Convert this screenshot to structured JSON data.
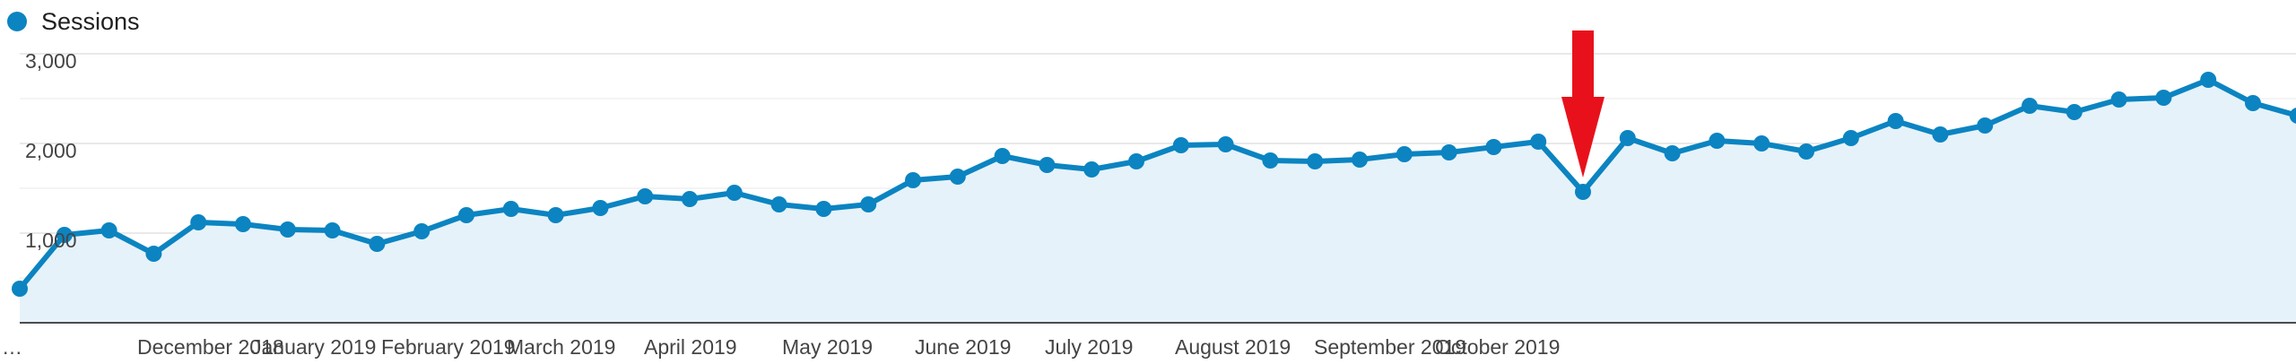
{
  "colors": {
    "line": "#0b84c1",
    "area": "#e6f2fa",
    "grid": "#e8e8e8",
    "axis": "#4d4d4d",
    "annotation_arrow": "#e8111b"
  },
  "chart_data": {
    "type": "area",
    "series": [
      {
        "name": "Sessions",
        "values": [
          380,
          980,
          1030,
          770,
          1120,
          1100,
          1040,
          1030,
          880,
          1020,
          1200,
          1270,
          1200,
          1280,
          1410,
          1380,
          1450,
          1320,
          1270,
          1320,
          1590,
          1630,
          1860,
          1760,
          1710,
          1800,
          1980,
          1990,
          1810,
          1800,
          1820,
          1880,
          1900,
          1960,
          2020,
          1460,
          2060,
          1890,
          2030,
          2000,
          1910,
          2060,
          2250,
          2100,
          2200,
          2420,
          2350,
          2490,
          2510,
          2710,
          2450,
          2310
        ]
      }
    ],
    "x_tick_labels": [
      "…",
      "December 2018",
      "January 2019",
      "February 2019",
      "March 2019",
      "April 2019",
      "May 2019",
      "June 2019",
      "July 2019",
      "August 2019",
      "September 2019",
      "October 2019"
    ],
    "y_ticks": [
      1000,
      2000,
      3000
    ],
    "y_tick_labels": [
      "1,000",
      "2,000",
      "3,000"
    ],
    "ylim": [
      0,
      3000
    ],
    "grid": true,
    "legend_position": "top-left",
    "annotation": {
      "type": "arrow",
      "points_to_index": 35
    }
  }
}
